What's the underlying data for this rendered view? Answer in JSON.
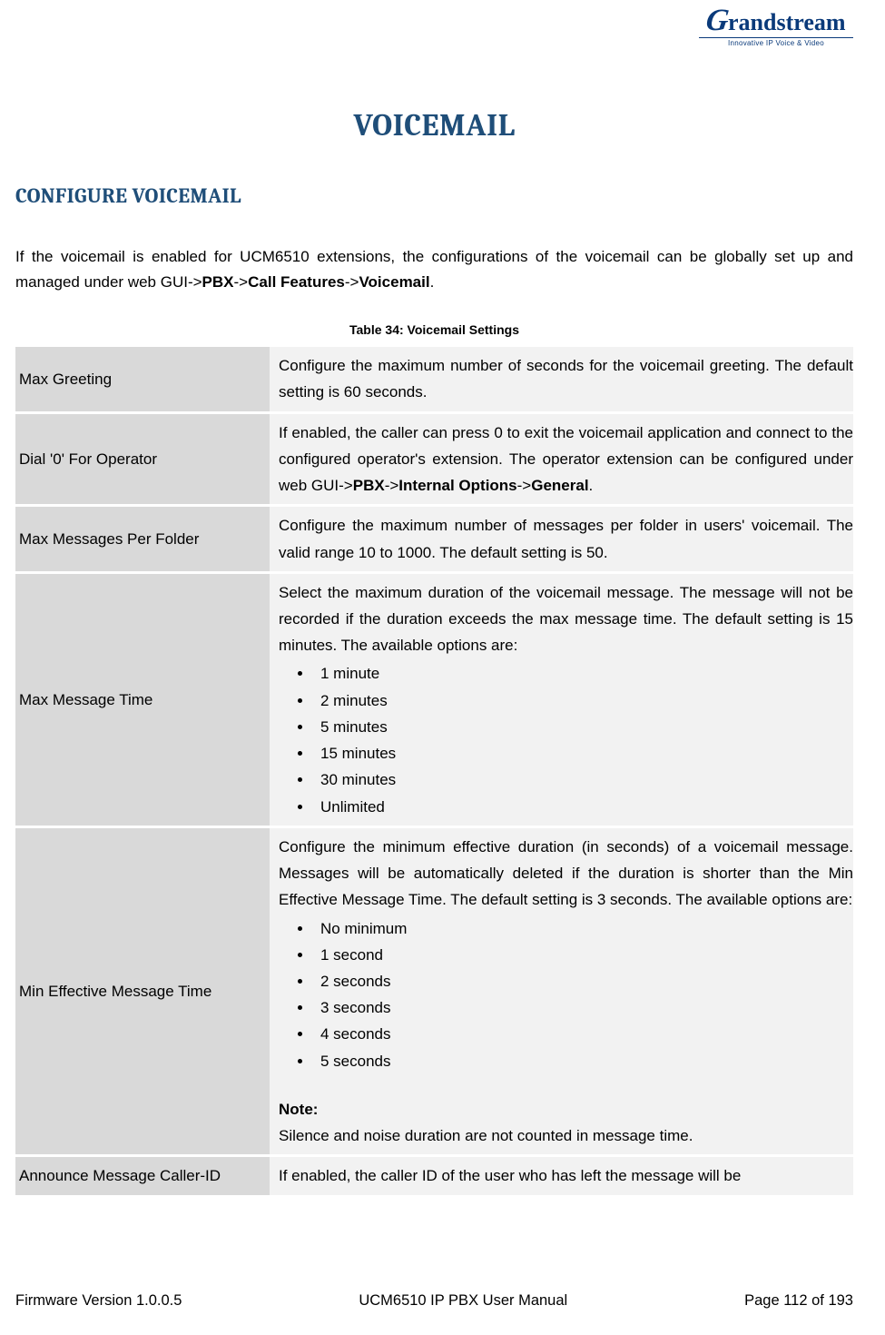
{
  "colors": {
    "heading": "#1f4e79",
    "label_bg": "#d9d9d9",
    "desc_bg": "#f2f2f2",
    "text": "#000000",
    "page_bg": "#ffffff",
    "logo": "#0a3a7a"
  },
  "logo": {
    "brand_initial": "G",
    "brand_rest": "randstream",
    "tagline": "Innovative IP Voice & Video"
  },
  "page_title": "VOICEMAIL",
  "section_title": "CONFIGURE VOICEMAIL",
  "intro": {
    "pre": "If the voicemail is enabled for UCM6510 extensions, the configurations of the voicemail can be globally set up and managed under web GUI->",
    "b1": "PBX",
    "mid1": "->",
    "b2": "Call Features",
    "mid2": "->",
    "b3": "Voicemail",
    "post": "."
  },
  "table_caption": "Table 34: Voicemail Settings",
  "rows": {
    "r1": {
      "label": "Max Greeting",
      "desc": "Configure the maximum number of seconds for the voicemail greeting. The default setting is 60 seconds."
    },
    "r2": {
      "label": "Dial '0' For Operator",
      "pre": "If enabled, the caller can press 0 to exit the voicemail application and connect to the configured operator's extension. The operator extension can be configured under web GUI->",
      "b1": "PBX",
      "mid1": "->",
      "b2": "Internal Options",
      "mid2": "->",
      "b3": "General",
      "post": "."
    },
    "r3": {
      "label": "Max Messages Per Folder",
      "desc": "Configure the maximum number of messages per folder in users' voicemail. The valid range 10 to 1000. The default setting is 50."
    },
    "r4": {
      "label": "Max Message Time",
      "desc": "Select the maximum duration of the voicemail message. The message will not be recorded if the duration exceeds the max message time. The default setting is 15 minutes. The available options are:",
      "opts": [
        "1 minute",
        "2 minutes",
        "5 minutes",
        "15 minutes",
        "30 minutes",
        "Unlimited"
      ]
    },
    "r5": {
      "label": "Min Effective Message Time",
      "desc": "Configure the minimum effective duration (in seconds) of a voicemail message. Messages will be automatically deleted if the duration is shorter than the Min Effective Message Time. The default setting is 3 seconds. The available options are:",
      "opts": [
        "No minimum",
        "1 second",
        "2 seconds",
        "3 seconds",
        "4 seconds",
        "5 seconds"
      ],
      "note_head": "Note:",
      "note_body": "Silence and noise duration are not counted in message time."
    },
    "r6": {
      "label": "Announce Message Caller-ID",
      "desc": "If enabled, the caller ID of the user who has left the message will be"
    }
  },
  "footer": {
    "left": "Firmware Version 1.0.0.5",
    "center": "UCM6510 IP PBX User Manual",
    "right": "Page 112 of 193"
  }
}
